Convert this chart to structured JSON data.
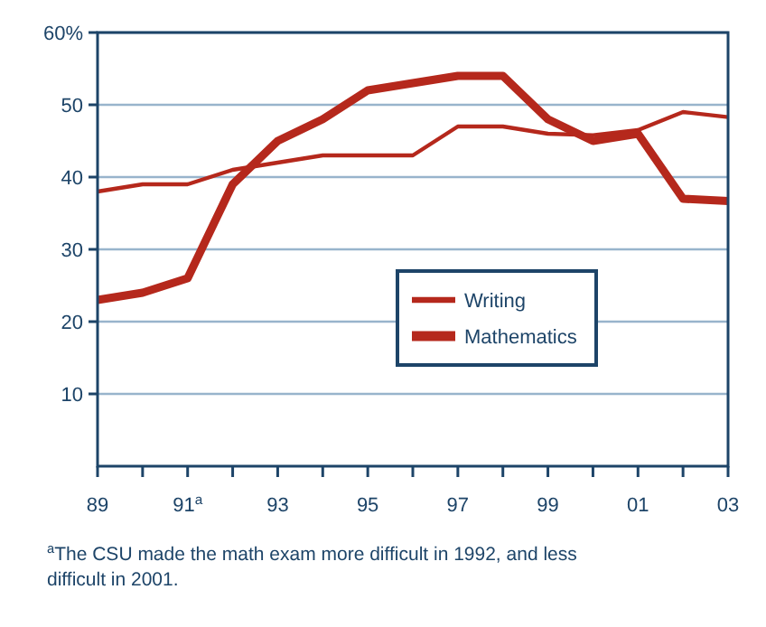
{
  "chart_data": {
    "type": "line",
    "categories": [
      "89",
      null,
      "91$^{a}$",
      null,
      "93",
      null,
      "95",
      null,
      "97",
      null,
      "99",
      null,
      "01",
      null,
      "03"
    ],
    "series": [
      {
        "name": "Writing",
        "color": "#b5281c",
        "values": [
          38,
          39,
          39,
          41,
          42,
          43,
          43,
          43,
          47,
          47,
          46,
          45.8,
          46.5,
          49,
          48.3
        ]
      },
      {
        "name": "Mathematics",
        "color": "#b5281c",
        "values": [
          23,
          24,
          26,
          39,
          45,
          48,
          52,
          53,
          54,
          54,
          48,
          45,
          46,
          37,
          36.7
        ]
      }
    ],
    "ylim": [
      0,
      60
    ],
    "yticks": [
      10,
      20,
      30,
      40,
      50,
      {
        "value": 60,
        "label": "60%"
      }
    ],
    "grid": "y",
    "legend": "center",
    "marker": "none",
    "line_style": "solid",
    "annotations": [
      "$^{a}$The CSU made the math exam more difficult in 1992, and less difficult in 2001."
    ]
  }
}
